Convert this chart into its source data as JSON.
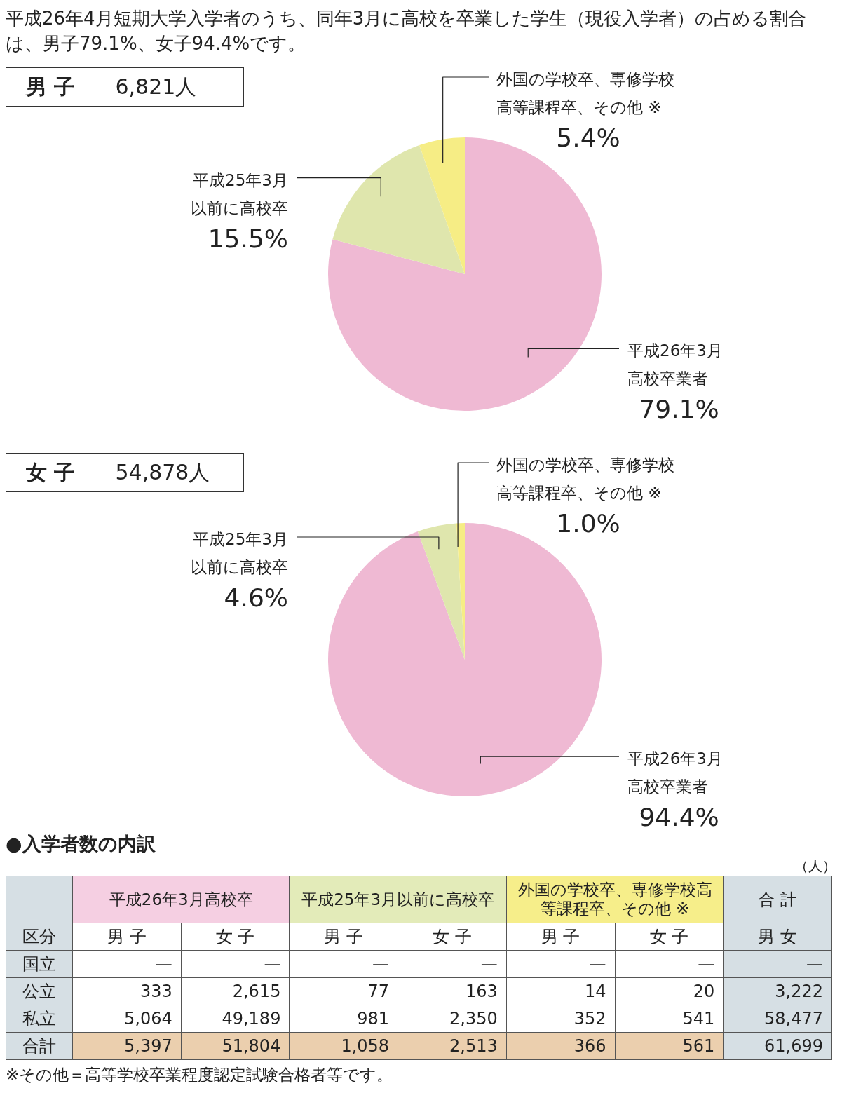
{
  "chart_data": [
    {
      "type": "pie",
      "title": "平成26年4月短期大学入学者のうち、同年3月に高校を卒業した学生（現役入学者）の占める割合は、男子79.1%、女子94.4%です。",
      "annotations": [
        "男 子",
        "6,821人"
      ],
      "categories": [
        "平成26年3月高校卒業者",
        "平成25年3月以前に高校卒",
        "外国の学校卒、専修学校高等課程卒、その他 ※"
      ],
      "values": [
        79.1,
        15.5,
        5.4
      ],
      "value_labels": [
        "79.1%",
        "15.5%",
        "5.4%"
      ],
      "colors": [
        "#efb9d3",
        "#dfe6ad",
        "#f6ed85"
      ],
      "legend": false
    },
    {
      "type": "pie",
      "annotations": [
        "女 子",
        "54,878人"
      ],
      "categories": [
        "平成26年3月高校卒業者",
        "平成25年3月以前に高校卒",
        "外国の学校卒、専修学校高等課程卒、その他 ※"
      ],
      "values": [
        94.4,
        4.6,
        1.0
      ],
      "value_labels": [
        "94.4%",
        "4.6%",
        "1.0%"
      ],
      "colors": [
        "#efb9d3",
        "#dfe6ad",
        "#f6ed85"
      ],
      "legend": false
    },
    {
      "type": "other",
      "title": "●入学者数の内訳",
      "xlabel": "区分",
      "annotations": [
        "（人）",
        "平成26年3月高校卒",
        "平成25年3月以前に高校卒",
        "外国の学校卒、専修学校高等課程卒、その他 ※",
        "合 計",
        "※その他＝高等学校卒業程度認定試験合格者等です。"
      ],
      "categories": [
        "男 子",
        "女 子",
        "男 子",
        "女 子",
        "男 子",
        "女 子",
        "男 女"
      ],
      "y_categories": [
        "国立",
        "公立",
        "私立",
        "合計"
      ],
      "cell_labels": [
        [
          "—",
          "—",
          "—",
          "—",
          "—",
          "—",
          "—"
        ],
        [
          "333",
          "2,615",
          "77",
          "163",
          "14",
          "20",
          "3,222"
        ],
        [
          "5,064",
          "49,189",
          "981",
          "2,350",
          "352",
          "541",
          "58,477"
        ],
        [
          "5,397",
          "51,804",
          "1,058",
          "2,513",
          "366",
          "561",
          "61,699"
        ]
      ]
    }
  ]
}
